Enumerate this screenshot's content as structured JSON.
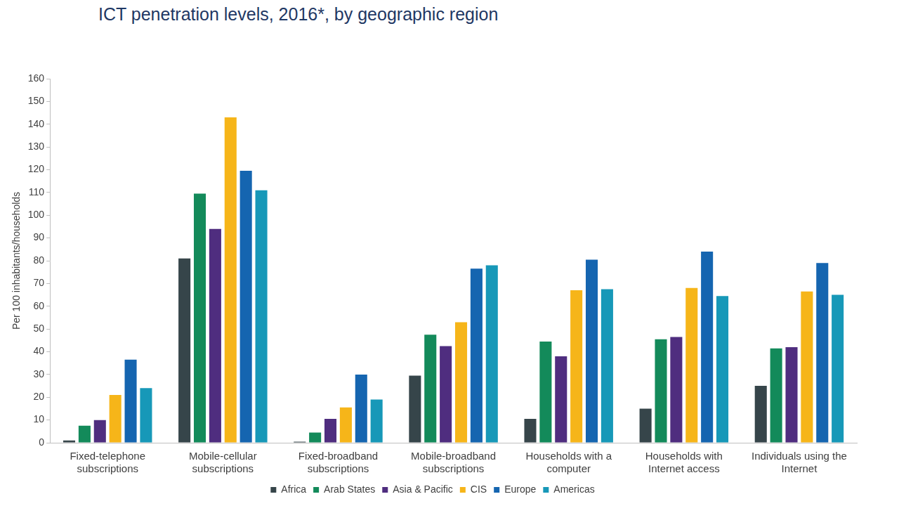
{
  "chart_data": {
    "type": "bar",
    "title": "ICT penetration levels, 2016*, by geographic region",
    "y_label": "Per 100 inhabitants/households",
    "categories": [
      "Fixed-telephone subscriptions",
      "Mobile-cellular subscriptions",
      "Fixed-broadband subscriptions",
      "Mobile-broadband subscriptions",
      "Households with a computer",
      "Households with Internet access",
      "Individuals using the Internet"
    ],
    "series": [
      {
        "name": "Africa",
        "color": "#36454a",
        "values": [
          1,
          81,
          0.5,
          29.5,
          10.5,
          15,
          25
        ]
      },
      {
        "name": "Arab States",
        "color": "#138a5a",
        "values": [
          7.5,
          109.5,
          4.5,
          47.5,
          44.5,
          45.5,
          41.5
        ]
      },
      {
        "name": "Asia & Pacific",
        "color": "#4f2d7f",
        "values": [
          10,
          94,
          10.5,
          42.5,
          38,
          46.5,
          42
        ]
      },
      {
        "name": "CIS",
        "color": "#f6b519",
        "values": [
          21,
          143,
          15.5,
          53,
          67,
          68,
          66.5
        ]
      },
      {
        "name": "Europe",
        "color": "#1565b0",
        "values": [
          36.5,
          119.5,
          30,
          76.5,
          80.5,
          84,
          79
        ]
      },
      {
        "name": "Americas",
        "color": "#1798b8",
        "values": [
          24,
          111,
          19,
          78,
          67.5,
          64.5,
          65
        ]
      }
    ],
    "ylim": [
      0,
      160
    ],
    "yticks": [
      0,
      10,
      20,
      30,
      40,
      50,
      60,
      70,
      80,
      90,
      100,
      110,
      120,
      130,
      140,
      150,
      160
    ],
    "grid": false,
    "legend": "bottom"
  }
}
